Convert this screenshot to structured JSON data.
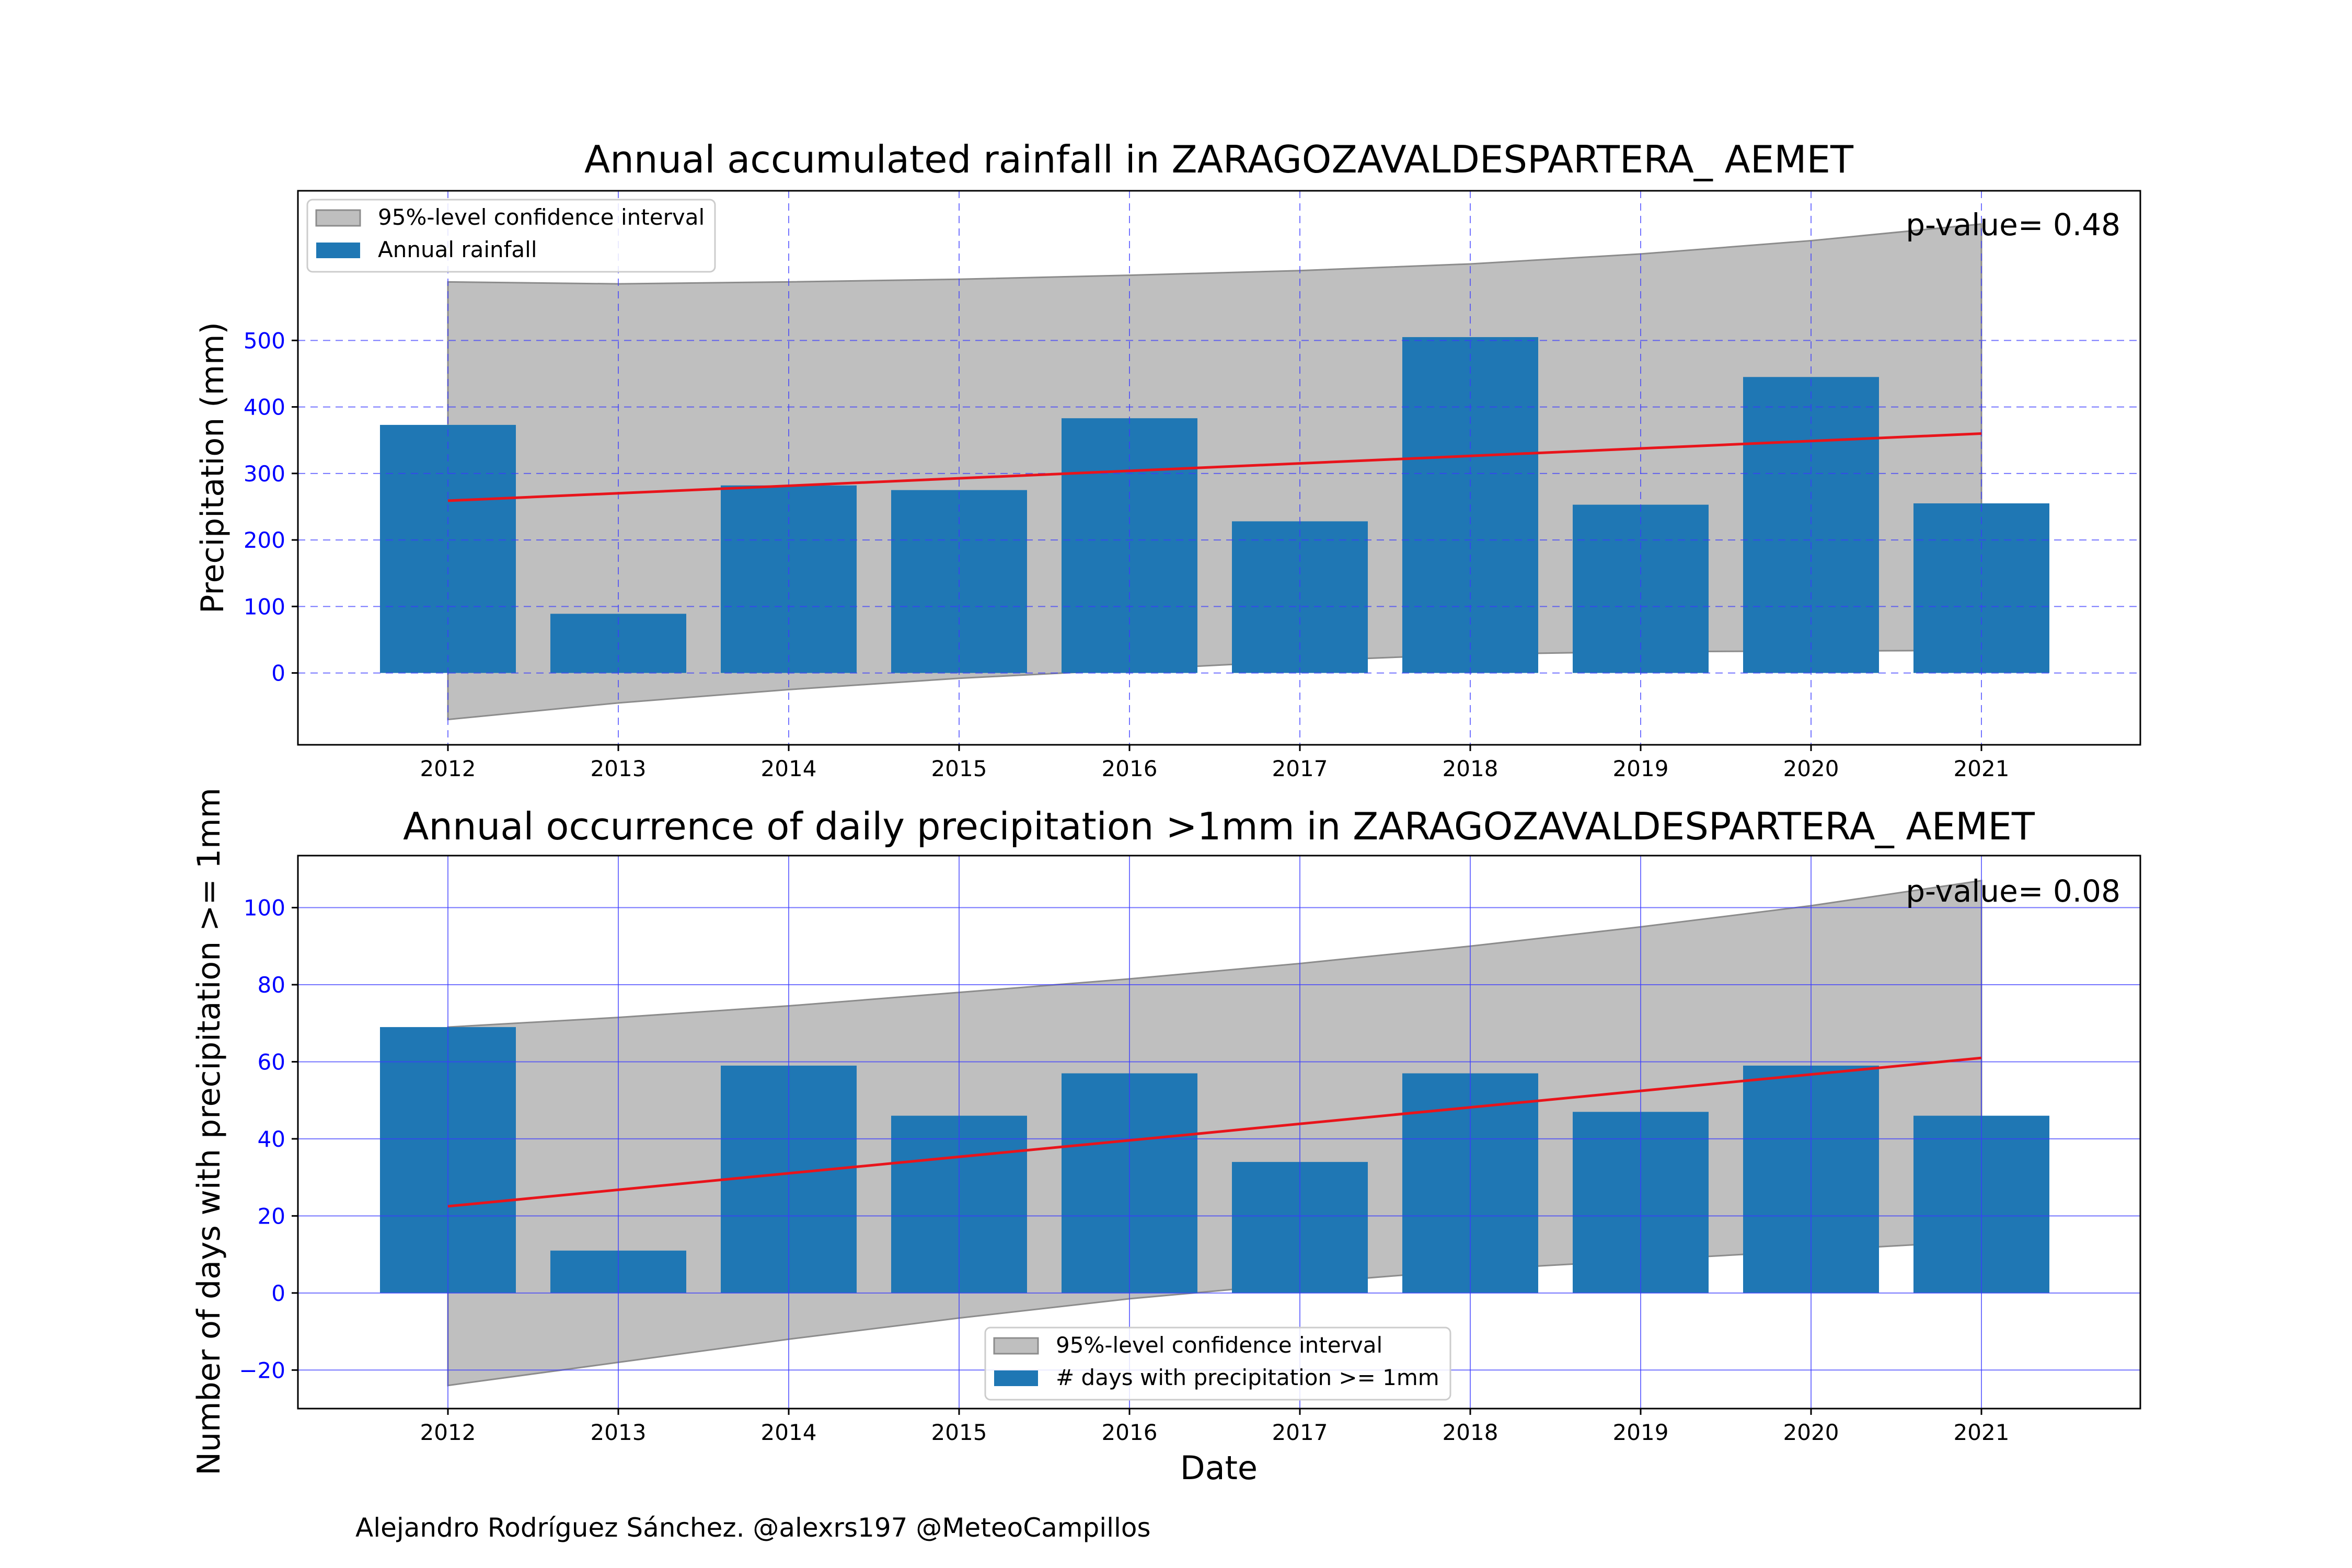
{
  "colors": {
    "bar": "#1f77b4",
    "trend": "#e8141b",
    "ci_fill": "#bfbfbf",
    "ci_edge": "#8c8c8c",
    "grid": "#3a3aff",
    "ytick_label": "#0000ff",
    "axis": "#000000"
  },
  "footer": "Alejandro Rodríguez Sánchez. @alexrs197 @MeteoCampillos",
  "chart_data": [
    {
      "type": "bar",
      "title": "Annual accumulated rainfall in ZARAGOZAVALDESPARTERA_ AEMET",
      "xlabel": "",
      "ylabel": "Precipitation (mm)",
      "categories": [
        "2012",
        "2013",
        "2014",
        "2015",
        "2016",
        "2017",
        "2018",
        "2019",
        "2020",
        "2021"
      ],
      "series": [
        {
          "name": "Annual rainfall",
          "values": [
            373,
            89,
            282,
            275,
            383,
            228,
            505,
            253,
            445,
            255
          ]
        }
      ],
      "trend": {
        "start": 259,
        "end": 360
      },
      "confidence_interval": {
        "name": "95%-level confidence interval",
        "upper": [
          588,
          585,
          588,
          592,
          598,
          605,
          615,
          630,
          650,
          675
        ],
        "lower": [
          -70,
          -45,
          -25,
          -8,
          5,
          18,
          28,
          32,
          33,
          34
        ]
      },
      "annotation": "p-value= 0.48",
      "ylim": [
        -108,
        725
      ],
      "yticks": [
        0,
        100,
        200,
        300,
        400,
        500
      ],
      "grid": "dashed",
      "legend_position": "upper left"
    },
    {
      "type": "bar",
      "title": "Annual occurrence of daily precipitation >1mm in ZARAGOZAVALDESPARTERA_ AEMET",
      "xlabel": "Date",
      "ylabel": "Number of days with precipitation >= 1mm",
      "categories": [
        "2012",
        "2013",
        "2014",
        "2015",
        "2016",
        "2017",
        "2018",
        "2019",
        "2020",
        "2021"
      ],
      "series": [
        {
          "name": "# days with precipitation >= 1mm",
          "values": [
            69,
            11,
            59,
            46,
            57,
            34,
            57,
            47,
            59,
            46
          ]
        }
      ],
      "trend": {
        "start": 22.5,
        "end": 61
      },
      "confidence_interval": {
        "name": "95%-level confidence interval",
        "upper": [
          69,
          71.5,
          74.5,
          78,
          81.5,
          85.5,
          90,
          95,
          100.5,
          107
        ],
        "lower": [
          -24,
          -18,
          -12,
          -6.5,
          -1.5,
          2.5,
          6,
          8.5,
          11,
          13.5
        ]
      },
      "annotation": "p-value= 0.08",
      "ylim": [
        -30,
        113.5
      ],
      "yticks": [
        -20,
        0,
        20,
        40,
        60,
        80,
        100
      ],
      "grid": "solid",
      "legend_position": "lower center"
    }
  ]
}
